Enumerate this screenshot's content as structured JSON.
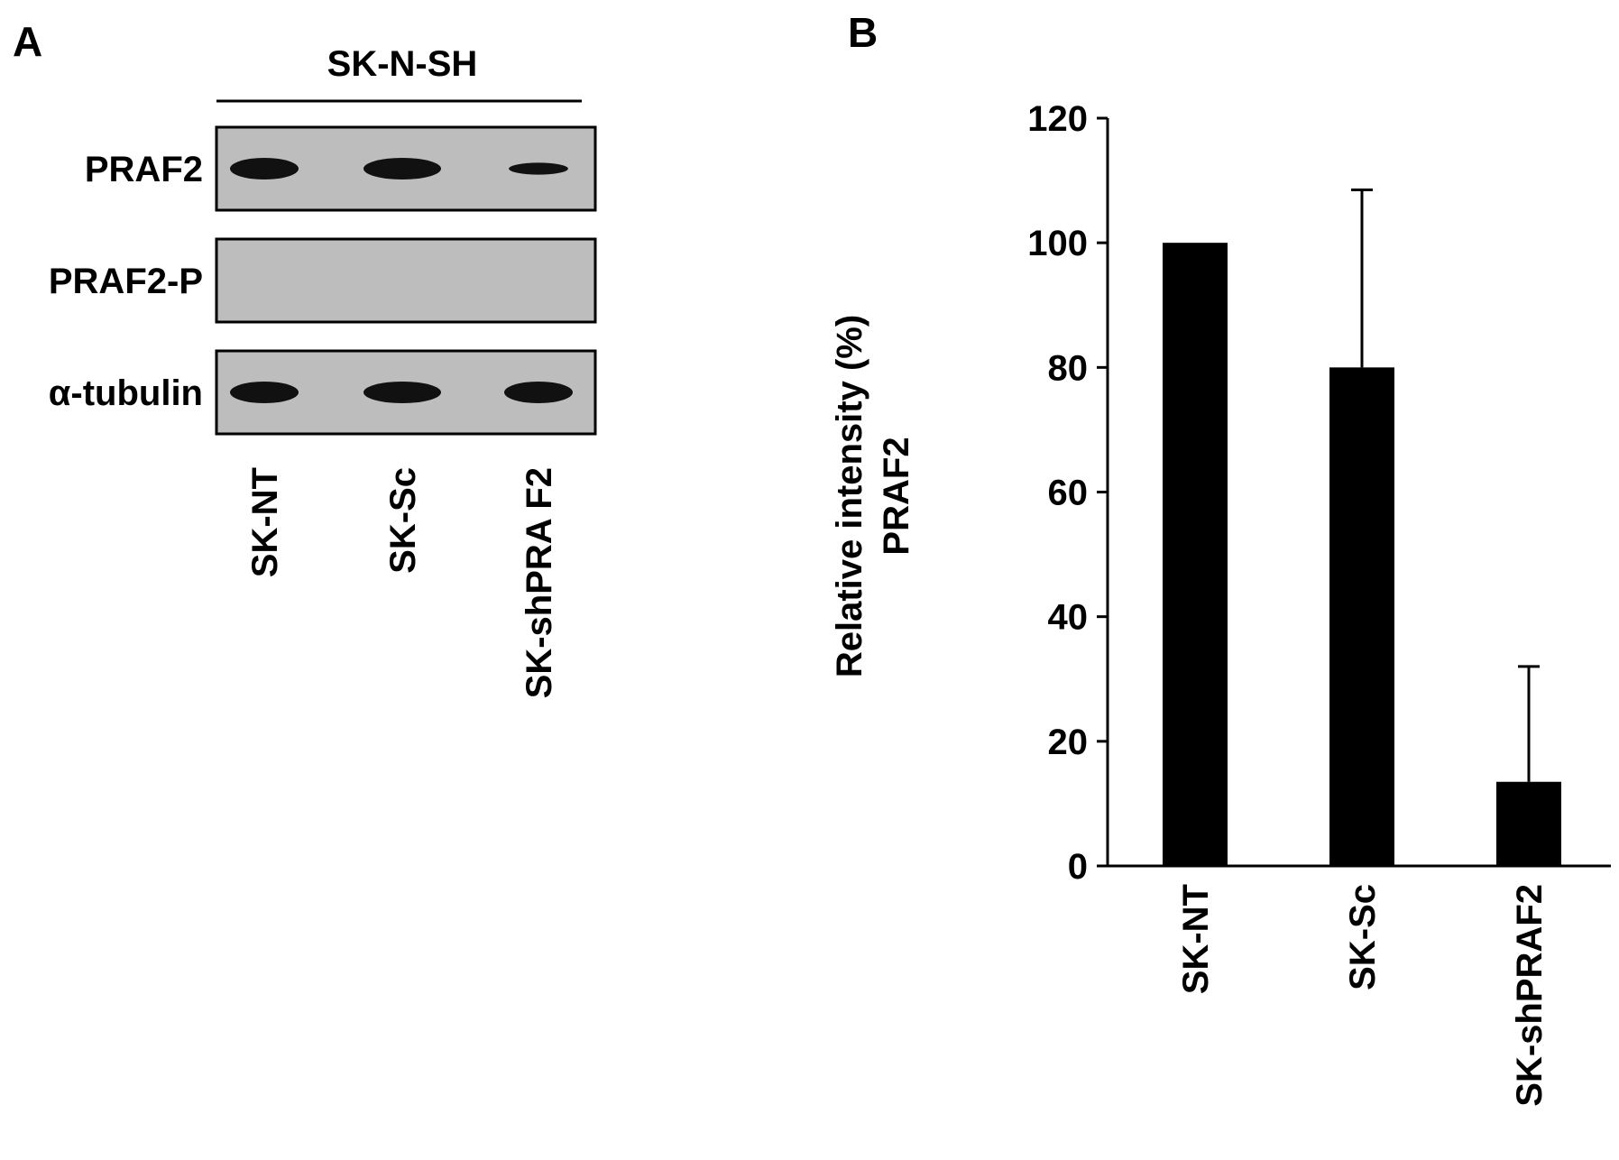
{
  "panel_a": {
    "label": "A",
    "cell_line": "SK-N-SH",
    "rows": [
      {
        "label": "PRAF2"
      },
      {
        "label": "PRAF2-P"
      },
      {
        "label": "α-tubulin"
      }
    ],
    "lanes": [
      "SK-NT",
      "SK-Sc",
      "SK-shPRA F2"
    ],
    "band_intensity": {
      "PRAF2": [
        1.0,
        1.0,
        0.55
      ],
      "PRAF2-P": [
        0,
        0,
        0
      ],
      "α-tubulin": [
        1.0,
        1.0,
        1.0
      ]
    },
    "colors": {
      "blot_background": "#bdbdbd",
      "band": "#111111"
    }
  },
  "panel_b": {
    "label": "B",
    "chart_data": {
      "type": "bar",
      "categories": [
        "SK-NT",
        "SK-Sc",
        "SK-shPRAF2"
      ],
      "values": [
        100,
        80,
        13.5
      ],
      "error_upper": [
        0,
        28.5,
        18.5
      ],
      "ylabel_line1": "Relative intensity (%)",
      "ylabel_line2": "PRAF2",
      "ylim": [
        0,
        120
      ],
      "yticks": [
        0,
        20,
        40,
        60,
        80,
        100,
        120
      ],
      "grid": false,
      "bar_color": "#000000"
    }
  }
}
